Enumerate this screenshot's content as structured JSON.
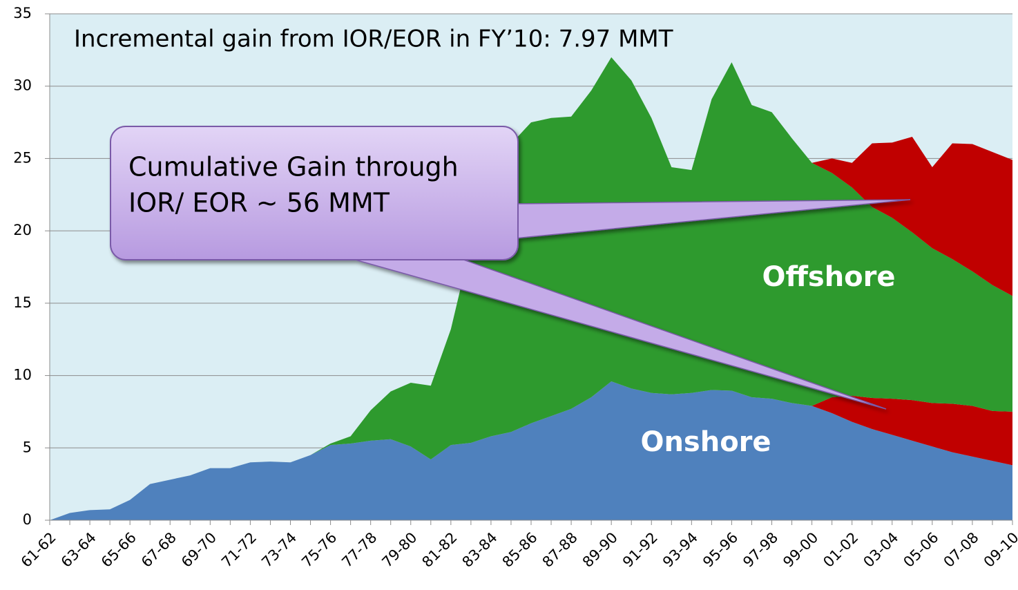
{
  "chart_data": {
    "type": "stacked_area",
    "annotation": "Incremental gain from IOR/EOR in FY’10: 7.97 MMT",
    "callout": [
      "Cumulative Gain through",
      "IOR/ EOR ~ 56 MMT"
    ],
    "categories": [
      "61-62",
      null,
      "63-64",
      null,
      "65-66",
      null,
      "67-68",
      null,
      "69-70",
      null,
      "71-72",
      null,
      "73-74",
      null,
      "75-76",
      null,
      "77-78",
      null,
      "79-80",
      null,
      "81-82",
      null,
      "83-84",
      null,
      "85-86",
      null,
      "87-88",
      null,
      "89-90",
      null,
      "91-92",
      null,
      "93-94",
      null,
      "95-96",
      null,
      "97-98",
      null,
      "99-00",
      null,
      "01-02",
      null,
      "03-04",
      null,
      "05-06",
      null,
      "07-08",
      null,
      "09-10"
    ],
    "series": [
      {
        "name": "Onshore",
        "color": "#4f81bd",
        "values": [
          0,
          0.5,
          0.7,
          0.75,
          1.4,
          2.5,
          2.8,
          3.1,
          3.6,
          3.6,
          4.0,
          4.05,
          4.0,
          4.5,
          5.2,
          5.3,
          5.5,
          5.6,
          5.1,
          4.2,
          5.2,
          5.35,
          5.8,
          6.1,
          6.7,
          7.2,
          7.7,
          8.5,
          9.6,
          9.1,
          8.8,
          8.7,
          8.8,
          9.0,
          8.95,
          8.5,
          8.4,
          8.1,
          7.9,
          7.4,
          6.8,
          6.3,
          5.9,
          5.5,
          5.1,
          4.7,
          4.4,
          4.1,
          3.8
        ]
      },
      {
        "color": "#c00000",
        "values": [
          0,
          0,
          0,
          0,
          0,
          0,
          0,
          0,
          0,
          0,
          0,
          0,
          0,
          0,
          0,
          0,
          0,
          0,
          0,
          0,
          0,
          0,
          0,
          0,
          0,
          0,
          0,
          0,
          0,
          0,
          0,
          0,
          0,
          0,
          0,
          0,
          0,
          0,
          0,
          1.1,
          1.8,
          2.15,
          2.5,
          2.8,
          3.0,
          3.35,
          3.5,
          3.45,
          3.7
        ]
      },
      {
        "name": "Offshore",
        "color": "#2e9a2e",
        "values": [
          0,
          0,
          0,
          0,
          0,
          0,
          0,
          0,
          0,
          0,
          0,
          0,
          0,
          0,
          0.1,
          0.5,
          2.1,
          3.3,
          4.4,
          5.1,
          8.0,
          13.7,
          18.2,
          19.9,
          20.8,
          20.6,
          20.2,
          21.2,
          22.4,
          21.3,
          19.0,
          15.7,
          15.4,
          20.1,
          22.7,
          20.2,
          19.8,
          18.3,
          16.8,
          15.5,
          14.4,
          13.2,
          12.5,
          11.6,
          10.7,
          10.0,
          9.3,
          8.7,
          8.0
        ]
      },
      {
        "color": "#c00000",
        "values": [
          0,
          0,
          0,
          0,
          0,
          0,
          0,
          0,
          0,
          0,
          0,
          0,
          0,
          0,
          0,
          0,
          0,
          0,
          0,
          0,
          0,
          0,
          0,
          0,
          0,
          0,
          0,
          0,
          0,
          0,
          0,
          0,
          0,
          0,
          0,
          0,
          0,
          0,
          0,
          1.0,
          1.7,
          4.4,
          5.2,
          6.6,
          5.6,
          8.0,
          8.8,
          9.2,
          9.4
        ]
      }
    ],
    "ylim": [
      0,
      35
    ],
    "yticks": [
      0,
      5,
      10,
      15,
      20,
      25,
      30,
      35
    ],
    "grid": true
  }
}
